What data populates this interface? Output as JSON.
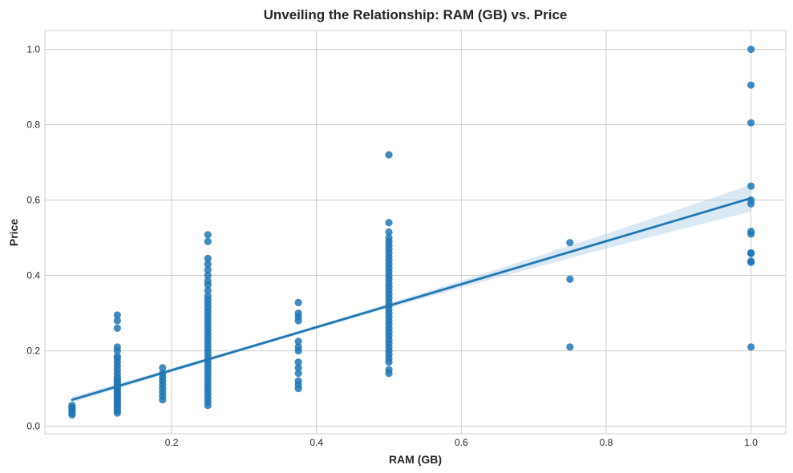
{
  "chart_data": {
    "type": "scatter",
    "title": "Unveiling the Relationship: RAM (GB) vs. Price",
    "xlabel": "RAM (GB)",
    "ylabel": "Price",
    "xlim": [
      0.025,
      1.048
    ],
    "ylim": [
      -0.02,
      1.05
    ],
    "xticks": [
      0.2,
      0.4,
      0.6,
      0.8,
      1.0
    ],
    "xtick_labels": [
      "0.2",
      "0.4",
      "0.6",
      "0.8",
      "1.0"
    ],
    "yticks": [
      0.0,
      0.2,
      0.4,
      0.6,
      0.8,
      1.0
    ],
    "ytick_labels": [
      "0.0",
      "0.2",
      "0.4",
      "0.6",
      "0.8",
      "1.0"
    ],
    "grid": true,
    "colors": {
      "points": "#1f77b4",
      "line": "#1f77b4",
      "band": "#aecbe6"
    },
    "points": [
      {
        "x": 0.0625,
        "y": [
          0.03,
          0.035,
          0.04,
          0.045,
          0.05,
          0.055
        ]
      },
      {
        "x": 0.125,
        "y": [
          0.035,
          0.04,
          0.045,
          0.05,
          0.055,
          0.06,
          0.065,
          0.07,
          0.075,
          0.08,
          0.085,
          0.09,
          0.095,
          0.1,
          0.105,
          0.11,
          0.115,
          0.12,
          0.125,
          0.13,
          0.14,
          0.15,
          0.16,
          0.17,
          0.18,
          0.185,
          0.2,
          0.21,
          0.26,
          0.28,
          0.295
        ]
      },
      {
        "x": 0.1875,
        "y": [
          0.07,
          0.08,
          0.09,
          0.1,
          0.11,
          0.12,
          0.13,
          0.14,
          0.155
        ]
      },
      {
        "x": 0.25,
        "y": [
          0.055,
          0.065,
          0.075,
          0.085,
          0.095,
          0.105,
          0.115,
          0.125,
          0.135,
          0.145,
          0.155,
          0.165,
          0.175,
          0.185,
          0.195,
          0.205,
          0.215,
          0.225,
          0.235,
          0.245,
          0.255,
          0.265,
          0.275,
          0.285,
          0.295,
          0.305,
          0.315,
          0.325,
          0.335,
          0.345,
          0.36,
          0.375,
          0.385,
          0.4,
          0.415,
          0.43,
          0.445,
          0.49,
          0.508
        ]
      },
      {
        "x": 0.375,
        "y": [
          0.1,
          0.11,
          0.12,
          0.14,
          0.155,
          0.17,
          0.2,
          0.21,
          0.225,
          0.28,
          0.29,
          0.3,
          0.328
        ]
      },
      {
        "x": 0.5,
        "y": [
          0.14,
          0.15,
          0.17,
          0.18,
          0.19,
          0.2,
          0.21,
          0.22,
          0.23,
          0.24,
          0.25,
          0.26,
          0.27,
          0.28,
          0.29,
          0.3,
          0.31,
          0.32,
          0.33,
          0.34,
          0.35,
          0.36,
          0.37,
          0.38,
          0.39,
          0.4,
          0.41,
          0.42,
          0.43,
          0.44,
          0.45,
          0.46,
          0.47,
          0.48,
          0.49,
          0.5,
          0.515,
          0.54,
          0.72
        ]
      },
      {
        "x": 0.75,
        "y": [
          0.21,
          0.39,
          0.487
        ]
      },
      {
        "x": 1.0,
        "y": [
          0.21,
          0.435,
          0.438,
          0.458,
          0.46,
          0.51,
          0.517,
          0.59,
          0.6,
          0.637,
          0.805,
          0.905,
          1.0
        ]
      }
    ],
    "regression": {
      "x": [
        0.0625,
        1.0
      ],
      "y": [
        0.07,
        0.605
      ],
      "ci_halfwidth": [
        0.008,
        0.036
      ]
    }
  }
}
